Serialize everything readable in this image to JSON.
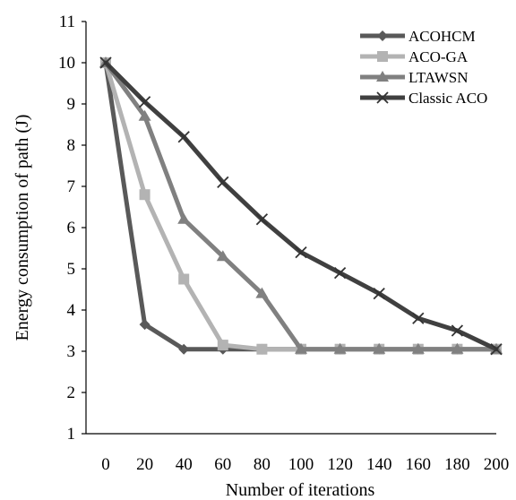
{
  "chart_data": {
    "type": "line",
    "title": "",
    "xlabel": "Number of iterations",
    "ylabel": "Energy consumption of path (J)",
    "xlim": [
      0,
      200
    ],
    "ylim": [
      1,
      11
    ],
    "x_ticks": [
      "0",
      "20",
      "40",
      "60",
      "80",
      "100",
      "120",
      "140",
      "160",
      "180",
      "200"
    ],
    "y_ticks": [
      "1",
      "2",
      "3",
      "4",
      "5",
      "6",
      "7",
      "8",
      "9",
      "10",
      "11"
    ],
    "grid": false,
    "legend_position": "top-right",
    "series": [
      {
        "name": "ACOHCM",
        "marker": "diamond",
        "color": "#595959",
        "points": [
          [
            0,
            10.0
          ],
          [
            20,
            3.65
          ],
          [
            40,
            3.05
          ],
          [
            60,
            3.05
          ],
          [
            80,
            3.05
          ],
          [
            100,
            3.05
          ],
          [
            120,
            3.05
          ],
          [
            140,
            3.05
          ],
          [
            160,
            3.05
          ],
          [
            180,
            3.05
          ],
          [
            200,
            3.05
          ]
        ]
      },
      {
        "name": "ACO-GA",
        "marker": "square",
        "color": "#b3b3b3",
        "points": [
          [
            0,
            10.0
          ],
          [
            20,
            6.8
          ],
          [
            40,
            4.75
          ],
          [
            60,
            3.15
          ],
          [
            80,
            3.05
          ],
          [
            100,
            3.05
          ],
          [
            120,
            3.05
          ],
          [
            140,
            3.05
          ],
          [
            160,
            3.05
          ],
          [
            180,
            3.05
          ],
          [
            200,
            3.05
          ]
        ]
      },
      {
        "name": "LTAWSN",
        "marker": "triangle",
        "color": "#808080",
        "points": [
          [
            0,
            10.0
          ],
          [
            20,
            8.7
          ],
          [
            40,
            6.2
          ],
          [
            60,
            5.3
          ],
          [
            80,
            4.4
          ],
          [
            100,
            3.05
          ],
          [
            120,
            3.05
          ],
          [
            140,
            3.05
          ],
          [
            160,
            3.05
          ],
          [
            180,
            3.05
          ],
          [
            200,
            3.05
          ]
        ]
      },
      {
        "name": "Classic ACO",
        "marker": "x",
        "color": "#404040",
        "points": [
          [
            0,
            10.0
          ],
          [
            20,
            9.05
          ],
          [
            40,
            8.2
          ],
          [
            60,
            7.1
          ],
          [
            80,
            6.2
          ],
          [
            100,
            5.4
          ],
          [
            120,
            4.9
          ],
          [
            140,
            4.4
          ],
          [
            160,
            3.8
          ],
          [
            180,
            3.5
          ],
          [
            200,
            3.05
          ]
        ]
      }
    ]
  }
}
